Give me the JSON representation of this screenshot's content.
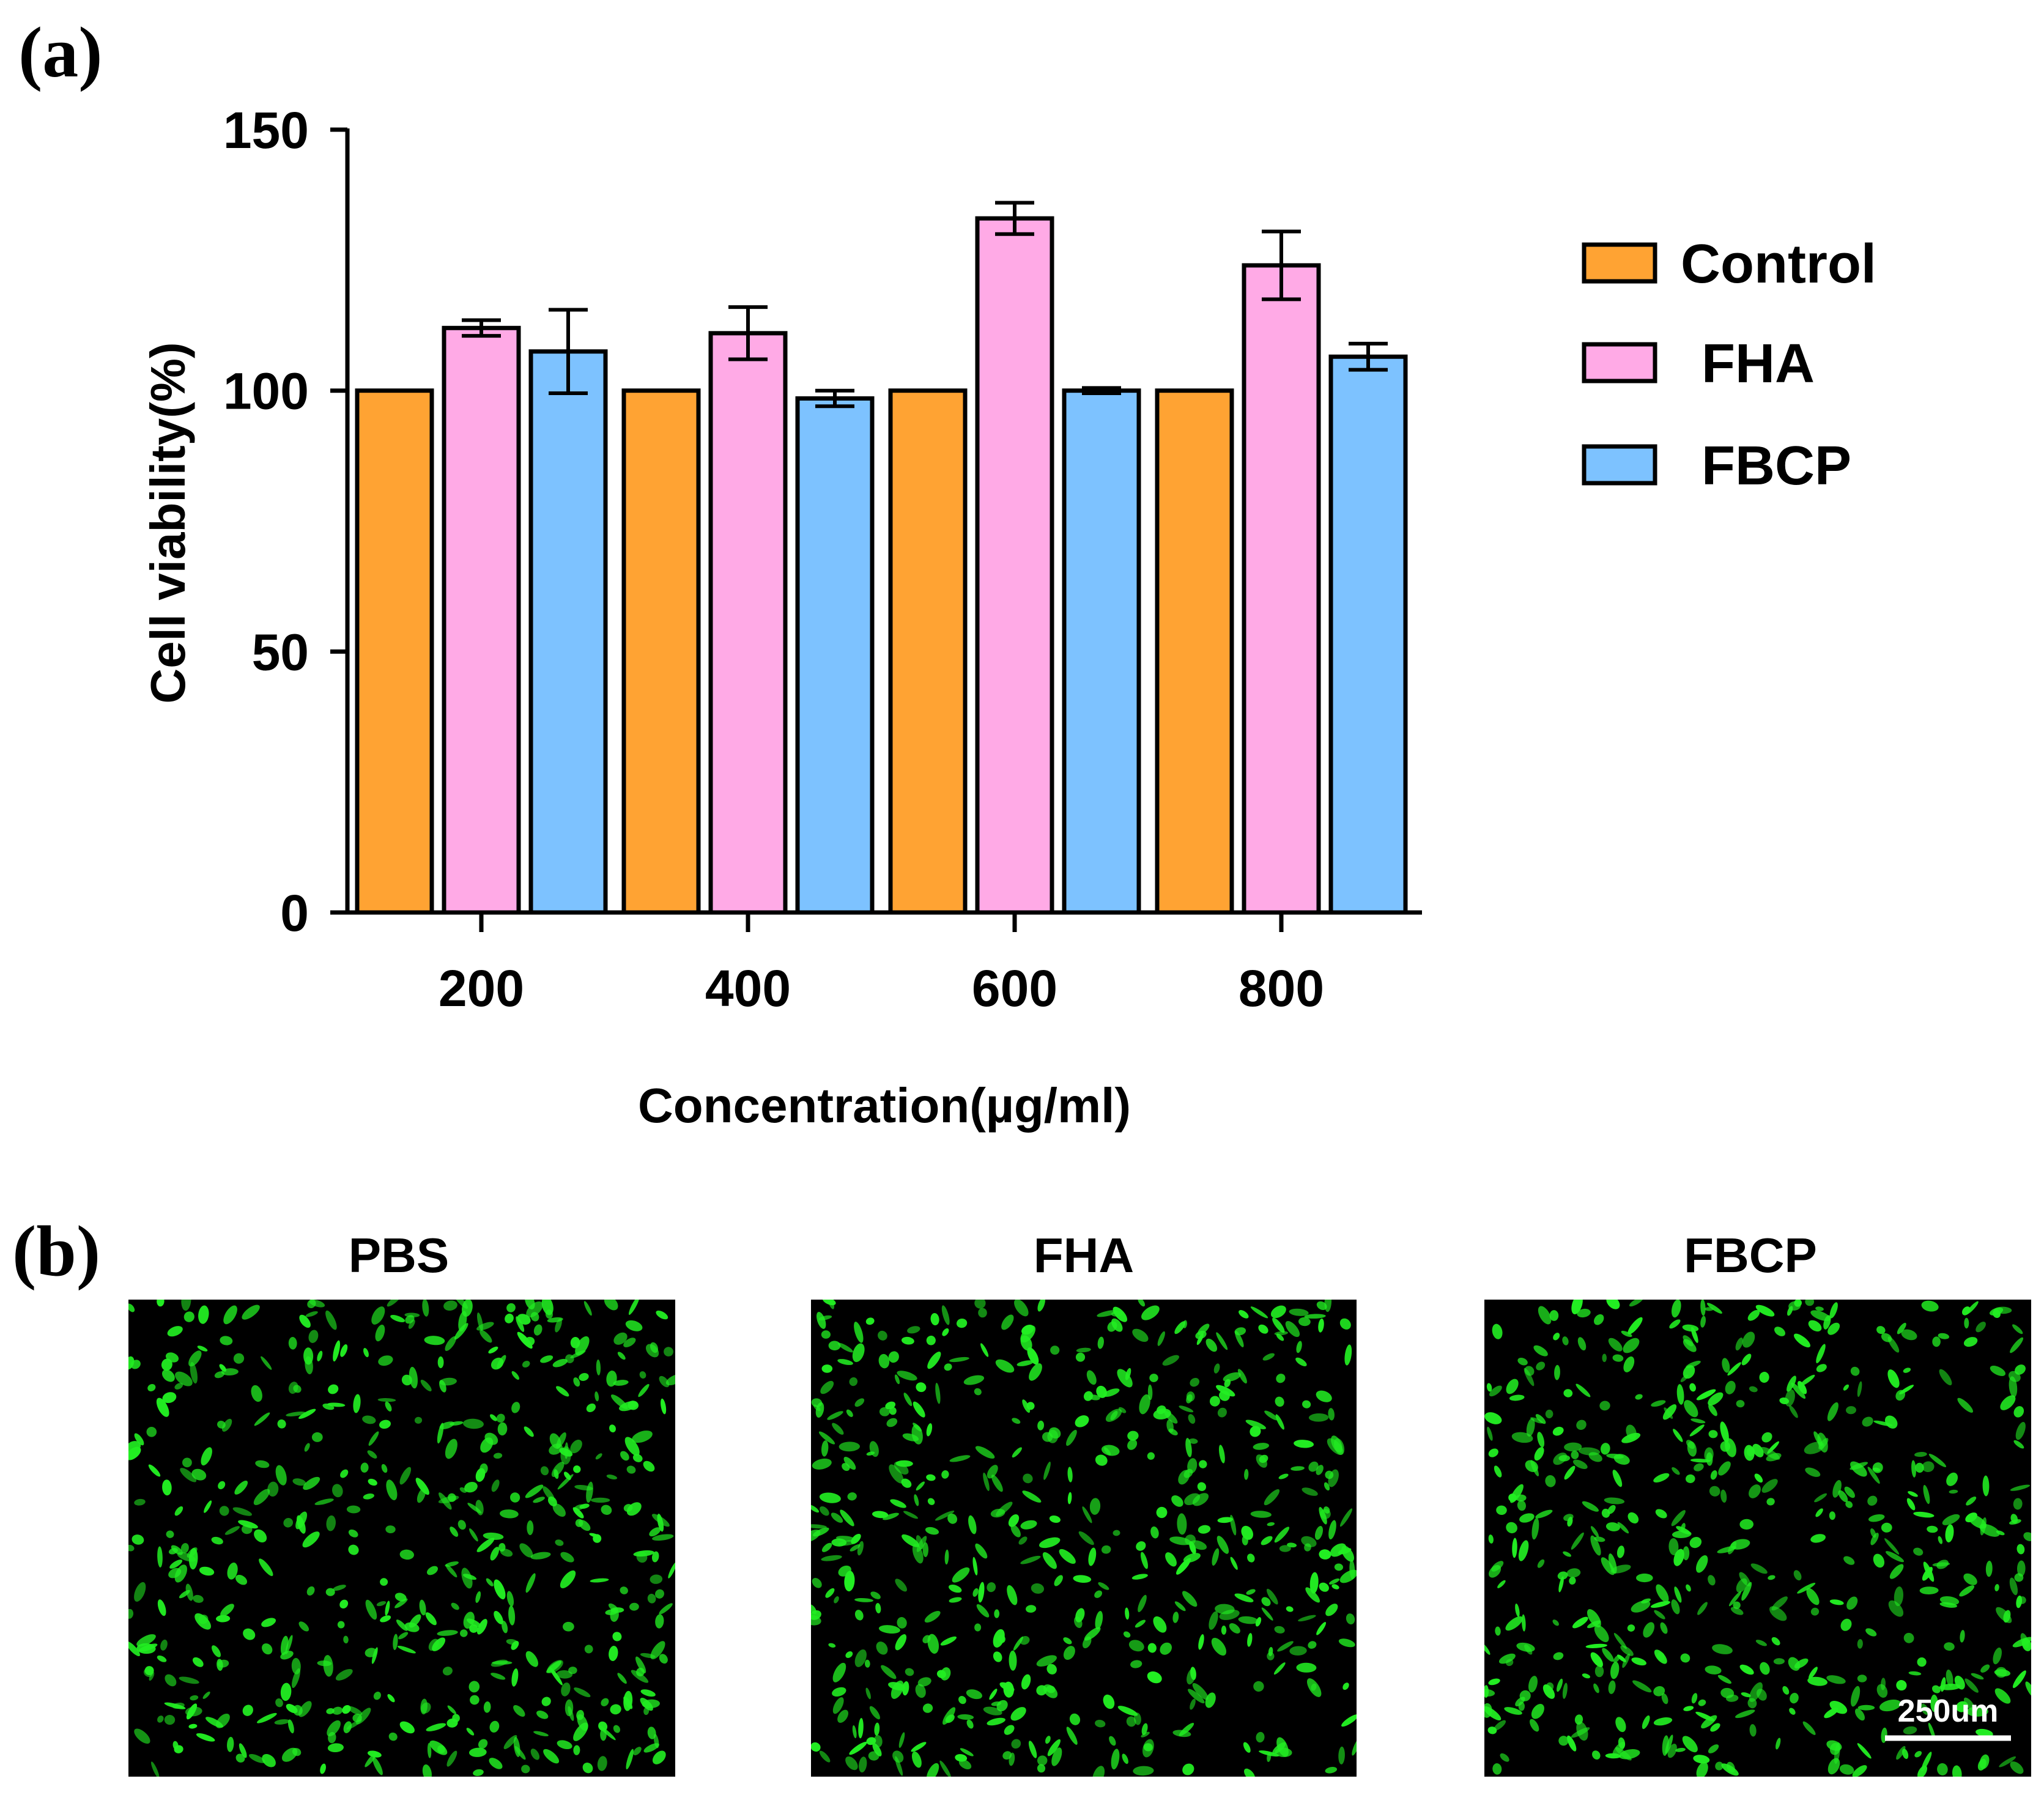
{
  "panel_a_label": "(a)",
  "panel_b_label": "(b)",
  "chart_data": {
    "type": "bar",
    "title": "",
    "xlabel": "Concentration(µg/ml)",
    "ylabel": "Cell viability(%)",
    "ylim": [
      0,
      150
    ],
    "yticks": [
      "0",
      "50",
      "100",
      "150"
    ],
    "categories": [
      "200",
      "400",
      "600",
      "800"
    ],
    "series": [
      {
        "name": "Control",
        "color": "#FFA333",
        "values": [
          100,
          100,
          100,
          100
        ],
        "errors": [
          0,
          0,
          0,
          0
        ]
      },
      {
        "name": "FHA",
        "color": "#FFAAE6",
        "values": [
          112,
          111,
          133,
          124
        ],
        "errors": [
          1.5,
          5,
          3,
          6.5
        ]
      },
      {
        "name": "FBCP",
        "color": "#7DC2FF",
        "values": [
          107.5,
          98.5,
          100,
          106.5
        ],
        "errors": [
          8,
          1.5,
          0.5,
          2.5
        ]
      }
    ],
    "legend_position": "right",
    "grid": false
  },
  "micrographs": {
    "titles": [
      "PBS",
      "FHA",
      "FBCP"
    ],
    "scale_bar_label": "250um",
    "fluorescence_color": "#22ee22",
    "background_color": "#000000"
  }
}
